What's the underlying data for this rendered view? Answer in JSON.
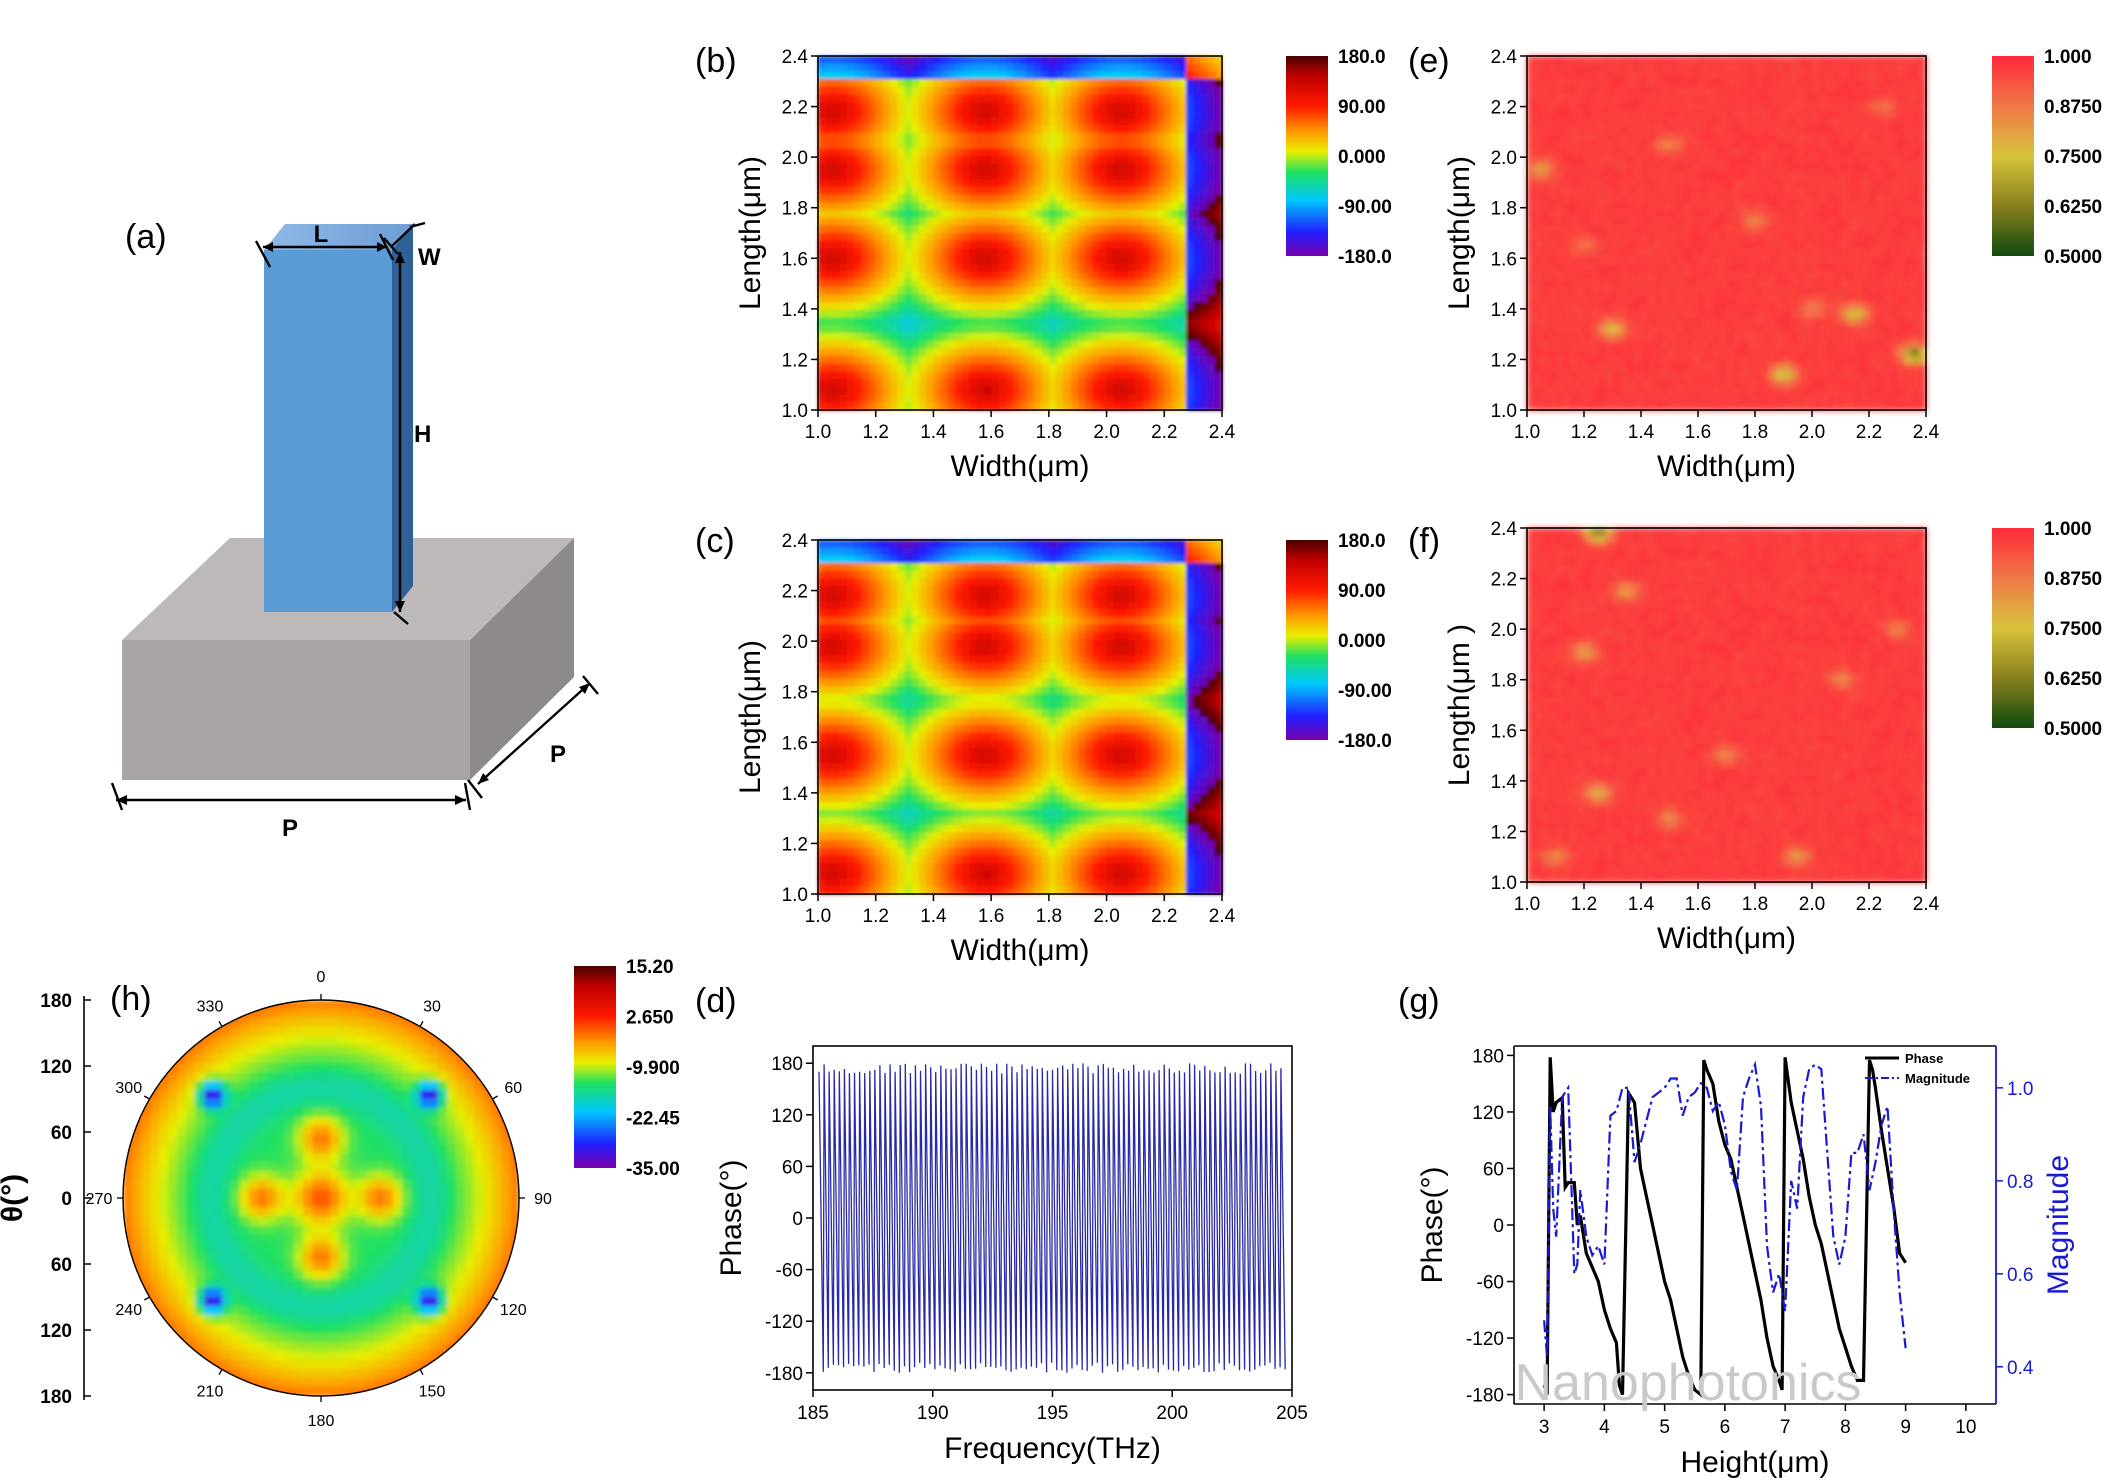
{
  "panels": {
    "a": {
      "label": "(a)",
      "dims": {
        "length": "L",
        "width": "W",
        "height": "H",
        "period": "P",
        "period_depth": "P"
      }
    },
    "b": {
      "label": "(b)"
    },
    "c": {
      "label": "(c)"
    },
    "d": {
      "label": "(d)"
    },
    "e": {
      "label": "(e)"
    },
    "f": {
      "label": "(f)"
    },
    "g": {
      "label": "(g)"
    },
    "h": {
      "label": "(h)"
    }
  },
  "watermark": "Nanophotonics",
  "chart_data": [
    {
      "id": "b",
      "type": "heatmap",
      "quantity": "phase",
      "xlabel": "Width(μm)",
      "ylabel": "Length(μm)",
      "xlim": [
        1.0,
        2.4
      ],
      "ylim": [
        1.0,
        2.4
      ],
      "xticks": [
        "1.0",
        "1.2",
        "1.4",
        "1.6",
        "1.8",
        "2.0",
        "2.2",
        "2.4"
      ],
      "yticks": [
        "1.0",
        "1.2",
        "1.4",
        "1.6",
        "1.8",
        "2.0",
        "2.2",
        "2.4"
      ],
      "colorbar": {
        "min": -180,
        "max": 180,
        "ticks": [
          "180.0",
          "90.00",
          "0.000",
          "-90.00",
          "-180.0"
        ]
      },
      "phase_peaks_um": {
        "width": [
          1.05,
          1.58,
          2.05
        ],
        "length": [
          1.08,
          1.6,
          1.95,
          2.18
        ]
      }
    },
    {
      "id": "c",
      "type": "heatmap",
      "quantity": "phase",
      "xlabel": "Width(μm)",
      "ylabel": "Length(μm)",
      "xlim": [
        1.0,
        2.4
      ],
      "ylim": [
        1.0,
        2.4
      ],
      "xticks": [
        "1.0",
        "1.2",
        "1.4",
        "1.6",
        "1.8",
        "2.0",
        "2.2",
        "2.4"
      ],
      "yticks": [
        "1.0",
        "1.2",
        "1.4",
        "1.6",
        "1.8",
        "2.0",
        "2.2",
        "2.4"
      ],
      "colorbar": {
        "min": -180,
        "max": 180,
        "ticks": [
          "180.0",
          "90.00",
          "0.000",
          "-90.00",
          "-180.0"
        ]
      },
      "phase_peaks_um": {
        "width": [
          1.05,
          1.58,
          2.05
        ],
        "length": [
          1.08,
          1.55,
          1.98,
          2.18
        ]
      }
    },
    {
      "id": "e",
      "type": "heatmap",
      "quantity": "magnitude",
      "xlabel": "Width(μm)",
      "ylabel": "Length(μm)",
      "xlim": [
        1.0,
        2.4
      ],
      "ylim": [
        1.0,
        2.4
      ],
      "xticks": [
        "1.0",
        "1.2",
        "1.4",
        "1.6",
        "1.8",
        "2.0",
        "2.2",
        "2.4"
      ],
      "yticks": [
        "1.0",
        "1.2",
        "1.4",
        "1.6",
        "1.8",
        "2.0",
        "2.2",
        "2.4"
      ],
      "colorbar": {
        "min": 0.5,
        "max": 1.0,
        "ticks": [
          "1.000",
          "0.8750",
          "0.7500",
          "0.6250",
          "0.5000"
        ]
      },
      "background_value": 0.97,
      "spots": [
        [
          1.05,
          1.95,
          0.8
        ],
        [
          1.3,
          1.32,
          0.75
        ],
        [
          1.9,
          1.14,
          0.72
        ],
        [
          2.15,
          1.38,
          0.72
        ],
        [
          2.36,
          1.22,
          0.6
        ],
        [
          1.5,
          2.05,
          0.85
        ],
        [
          1.8,
          1.75,
          0.85
        ],
        [
          2.0,
          1.4,
          0.85
        ],
        [
          1.2,
          1.65,
          0.88
        ],
        [
          2.25,
          2.2,
          0.88
        ]
      ]
    },
    {
      "id": "f",
      "type": "heatmap",
      "quantity": "magnitude",
      "xlabel": "Width(μm)",
      "ylabel": "Length(μm )",
      "xlim": [
        1.0,
        2.4
      ],
      "ylim": [
        1.0,
        2.4
      ],
      "xticks": [
        "1.0",
        "1.2",
        "1.4",
        "1.6",
        "1.8",
        "2.0",
        "2.2",
        "2.4"
      ],
      "yticks": [
        "1.0",
        "1.2",
        "1.4",
        "1.6",
        "1.8",
        "2.0",
        "2.2",
        "2.4"
      ],
      "colorbar": {
        "min": 0.5,
        "max": 1.0,
        "ticks": [
          "1.000",
          "0.8750",
          "0.7500",
          "0.6250",
          "0.5000"
        ]
      },
      "background_value": 0.97,
      "spots": [
        [
          1.25,
          2.38,
          0.62
        ],
        [
          1.2,
          1.91,
          0.8
        ],
        [
          1.35,
          2.15,
          0.82
        ],
        [
          1.25,
          1.35,
          0.78
        ],
        [
          1.95,
          1.1,
          0.82
        ],
        [
          1.7,
          1.5,
          0.85
        ],
        [
          2.1,
          1.8,
          0.85
        ],
        [
          2.3,
          2.0,
          0.86
        ],
        [
          1.5,
          1.25,
          0.85
        ],
        [
          1.1,
          1.1,
          0.85
        ]
      ]
    },
    {
      "id": "d",
      "type": "line",
      "xlabel": "Frequency(THz)",
      "ylabel": "Phase(°)",
      "xlim": [
        185,
        205
      ],
      "ylim": [
        -200,
        200
      ],
      "xticks": [
        "185",
        "190",
        "195",
        "200",
        "205"
      ],
      "yticks": [
        "180",
        "120",
        "60",
        "0",
        "-60",
        "-120",
        "-180"
      ],
      "series": [
        {
          "oscillation_count": 92,
          "amplitude_deg": 180,
          "color": "#2a2aa8"
        }
      ]
    },
    {
      "id": "g",
      "type": "line",
      "xlabel": "Height(μm)",
      "ylabel": "Phase(°)",
      "y2label": "Magnitude",
      "xlim": [
        2.5,
        10.5
      ],
      "ylim": [
        -190,
        190
      ],
      "y2lim": [
        0.32,
        1.09
      ],
      "xticks": [
        "3",
        "4",
        "5",
        "6",
        "7",
        "8",
        "9",
        "10"
      ],
      "yticks": [
        "180",
        "120",
        "60",
        "0",
        "-60",
        "-120",
        "-180"
      ],
      "y2ticks": [
        "0.4",
        "0.6",
        "0.8",
        "1.0"
      ],
      "series": [
        {
          "name": "Phase",
          "axis": "left",
          "color": "#000000",
          "x": [
            3.0,
            3.05,
            3.1,
            3.15,
            3.2,
            3.3,
            3.35,
            3.4,
            3.5,
            3.55,
            3.6,
            3.7,
            3.8,
            3.9,
            4.0,
            4.1,
            4.2,
            4.25,
            4.3,
            4.4,
            4.5,
            4.6,
            4.7,
            4.8,
            4.9,
            5.0,
            5.1,
            5.2,
            5.3,
            5.4,
            5.5,
            5.6,
            5.65,
            5.7,
            5.8,
            5.9,
            6.0,
            6.1,
            6.2,
            6.3,
            6.4,
            6.5,
            6.6,
            6.7,
            6.8,
            6.9,
            6.95,
            7.0,
            7.1,
            7.2,
            7.3,
            7.4,
            7.5,
            7.6,
            7.7,
            7.8,
            7.9,
            8.0,
            8.1,
            8.2,
            8.3,
            8.4,
            8.45,
            8.5,
            8.6,
            8.7,
            8.8,
            8.9,
            9.0
          ],
          "y": [
            -170,
            -180,
            178,
            120,
            130,
            135,
            40,
            45,
            45,
            0,
            10,
            -30,
            -45,
            -60,
            -90,
            -110,
            -125,
            -170,
            -180,
            140,
            130,
            60,
            30,
            0,
            -30,
            -60,
            -80,
            -110,
            -140,
            -160,
            -175,
            -180,
            175,
            165,
            150,
            110,
            85,
            70,
            40,
            10,
            -20,
            -50,
            -80,
            -120,
            -150,
            -165,
            -175,
            178,
            130,
            100,
            70,
            30,
            0,
            -20,
            -50,
            -80,
            -110,
            -130,
            -150,
            -165,
            -165,
            175,
            165,
            145,
            100,
            60,
            20,
            -30,
            -40
          ]
        },
        {
          "name": "Magnitude",
          "axis": "right",
          "color": "#1a1ad4",
          "x": [
            3.0,
            3.05,
            3.1,
            3.15,
            3.2,
            3.3,
            3.4,
            3.5,
            3.55,
            3.6,
            3.7,
            3.8,
            3.9,
            4.0,
            4.1,
            4.2,
            4.3,
            4.4,
            4.5,
            4.6,
            4.7,
            4.8,
            4.9,
            5.0,
            5.1,
            5.2,
            5.3,
            5.4,
            5.5,
            5.6,
            5.7,
            5.8,
            5.9,
            6.0,
            6.1,
            6.2,
            6.3,
            6.4,
            6.5,
            6.6,
            6.7,
            6.8,
            6.9,
            7.0,
            7.1,
            7.2,
            7.3,
            7.4,
            7.5,
            7.6,
            7.7,
            7.8,
            7.9,
            8.0,
            8.1,
            8.2,
            8.3,
            8.4,
            8.5,
            8.6,
            8.7,
            8.8,
            8.9,
            9.0
          ],
          "y": [
            0.5,
            0.42,
            0.96,
            0.74,
            0.68,
            0.98,
            1.0,
            0.6,
            0.62,
            0.78,
            0.68,
            0.64,
            0.66,
            0.62,
            0.94,
            0.95,
            1.0,
            1.0,
            0.84,
            0.88,
            0.93,
            0.98,
            0.99,
            1.0,
            1.02,
            1.02,
            0.94,
            0.98,
            0.99,
            1.01,
            1.0,
            0.95,
            0.97,
            0.92,
            0.82,
            0.78,
            0.98,
            1.02,
            1.05,
            0.96,
            0.66,
            0.56,
            0.6,
            0.52,
            0.8,
            0.74,
            0.98,
            1.04,
            1.05,
            1.04,
            0.86,
            0.68,
            0.62,
            0.68,
            0.86,
            0.86,
            0.9,
            0.78,
            0.84,
            0.92,
            0.96,
            0.74,
            0.56,
            0.44
          ]
        }
      ]
    },
    {
      "id": "h",
      "type": "heatmap",
      "quantity": "polar far-field",
      "ylabel": "θ(°)",
      "left_axis_ticks": [
        "180",
        "120",
        "60",
        "0",
        "60",
        "120",
        "180"
      ],
      "angle_labels": [
        "0",
        "30",
        "60",
        "90",
        "120",
        "150",
        "180",
        "210",
        "240",
        "270",
        "300",
        "330"
      ],
      "colorbar": {
        "min": -35,
        "max": 15.2,
        "ticks": [
          "15.20",
          "2.650",
          "-9.900",
          "-22.45",
          "-35.00"
        ]
      }
    }
  ]
}
